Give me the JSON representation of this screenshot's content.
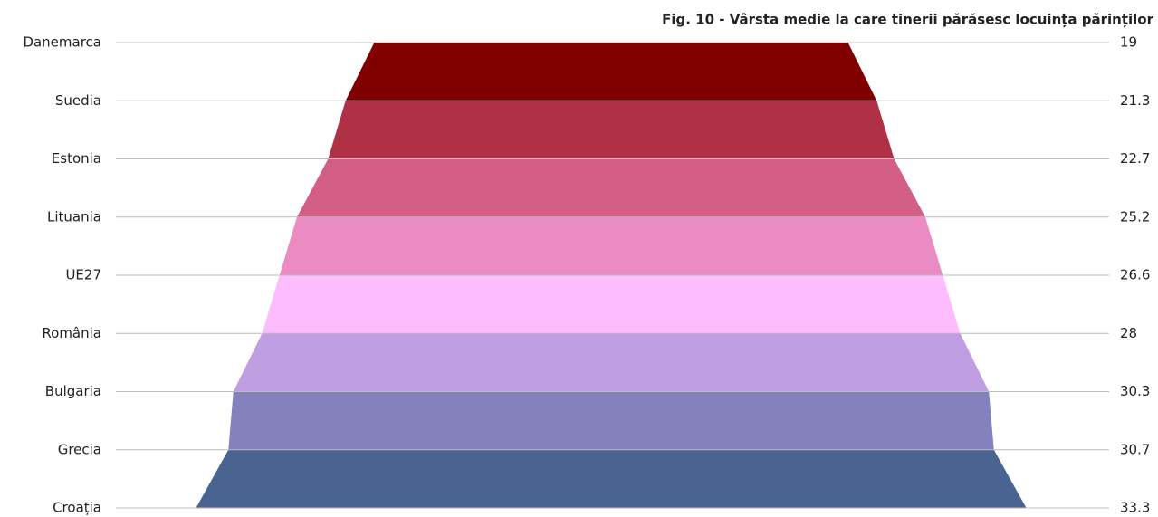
{
  "chart_data": {
    "type": "funnel",
    "title": "Fig. 10 - Vârsta medie la care tinerii părăsesc locuința părinților",
    "categories": [
      "Danemarca",
      "Suedia",
      "Estonia",
      "Lituania",
      "UE27",
      "România",
      "Bulgaria",
      "Grecia",
      "Croația"
    ],
    "values": [
      19,
      21.3,
      22.7,
      25.2,
      26.6,
      28,
      30.3,
      30.7,
      33.3
    ],
    "colors": [
      "#800000",
      "#b03045",
      "#d35e86",
      "#eb8bc3",
      "#fdbcfd",
      "#bf9ee2",
      "#8481bd",
      "#4a6491"
    ]
  }
}
